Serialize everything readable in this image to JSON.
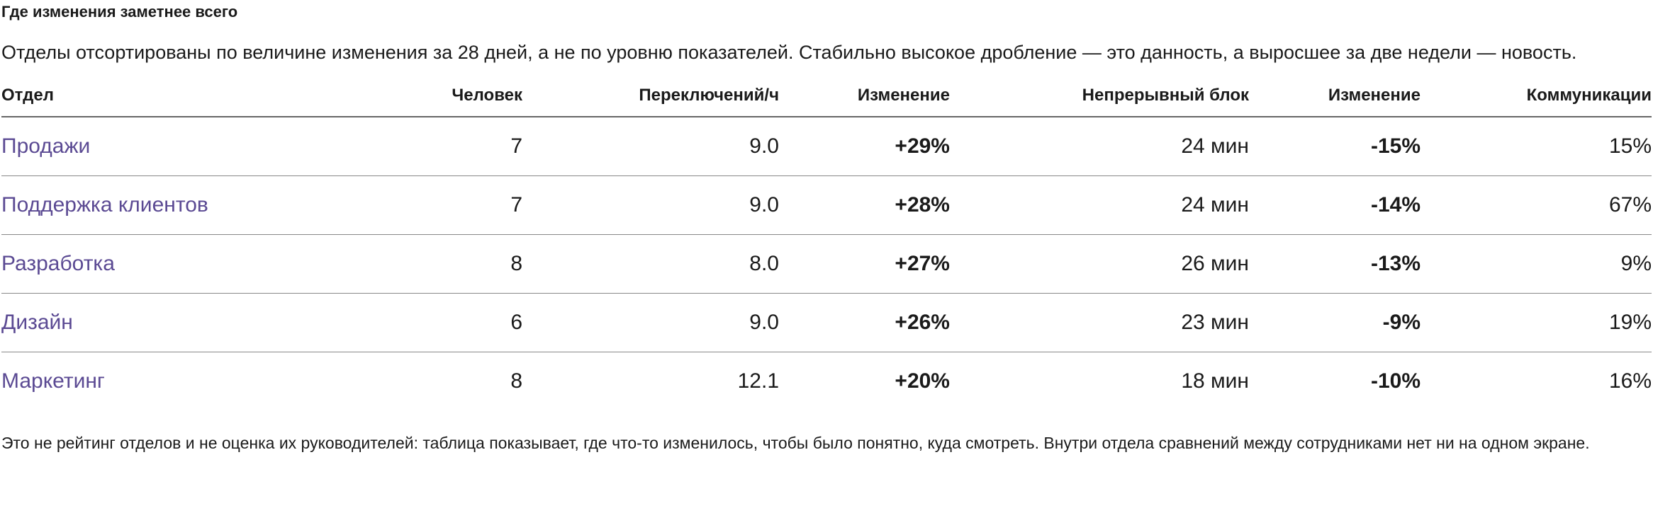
{
  "header": {
    "title": "Где изменения заметнее всего",
    "description": "Отделы отсортированы по величине изменения за 28 дней, а не по уровню показателей. Стабильно высокое дробление — это данность, а выросшее за две недели — новость."
  },
  "table": {
    "columns": [
      "Отдел",
      "Человек",
      "Переключений/ч",
      "Изменение",
      "Непрерывный блок",
      "Изменение",
      "Коммуникации"
    ],
    "rows": [
      [
        "Продажи",
        "7",
        "9.0",
        "+29%",
        "24 мин",
        "-15%",
        "15%"
      ],
      [
        "Поддержка клиентов",
        "7",
        "9.0",
        "+28%",
        "24 мин",
        "-14%",
        "67%"
      ],
      [
        "Разработка",
        "8",
        "8.0",
        "+27%",
        "26 мин",
        "-13%",
        "9%"
      ],
      [
        "Дизайн",
        "6",
        "9.0",
        "+26%",
        "23 мин",
        "-9%",
        "19%"
      ],
      [
        "Маркетинг",
        "8",
        "12.1",
        "+20%",
        "18 мин",
        "-10%",
        "16%"
      ]
    ]
  },
  "footnote": "Это не рейтинг отделов и не оценка их руководителей: таблица показывает, где что-то изменилось, чтобы было понятно, куда смотреть. Внутри отдела сравнений между сотрудниками нет ни на одном экране."
}
